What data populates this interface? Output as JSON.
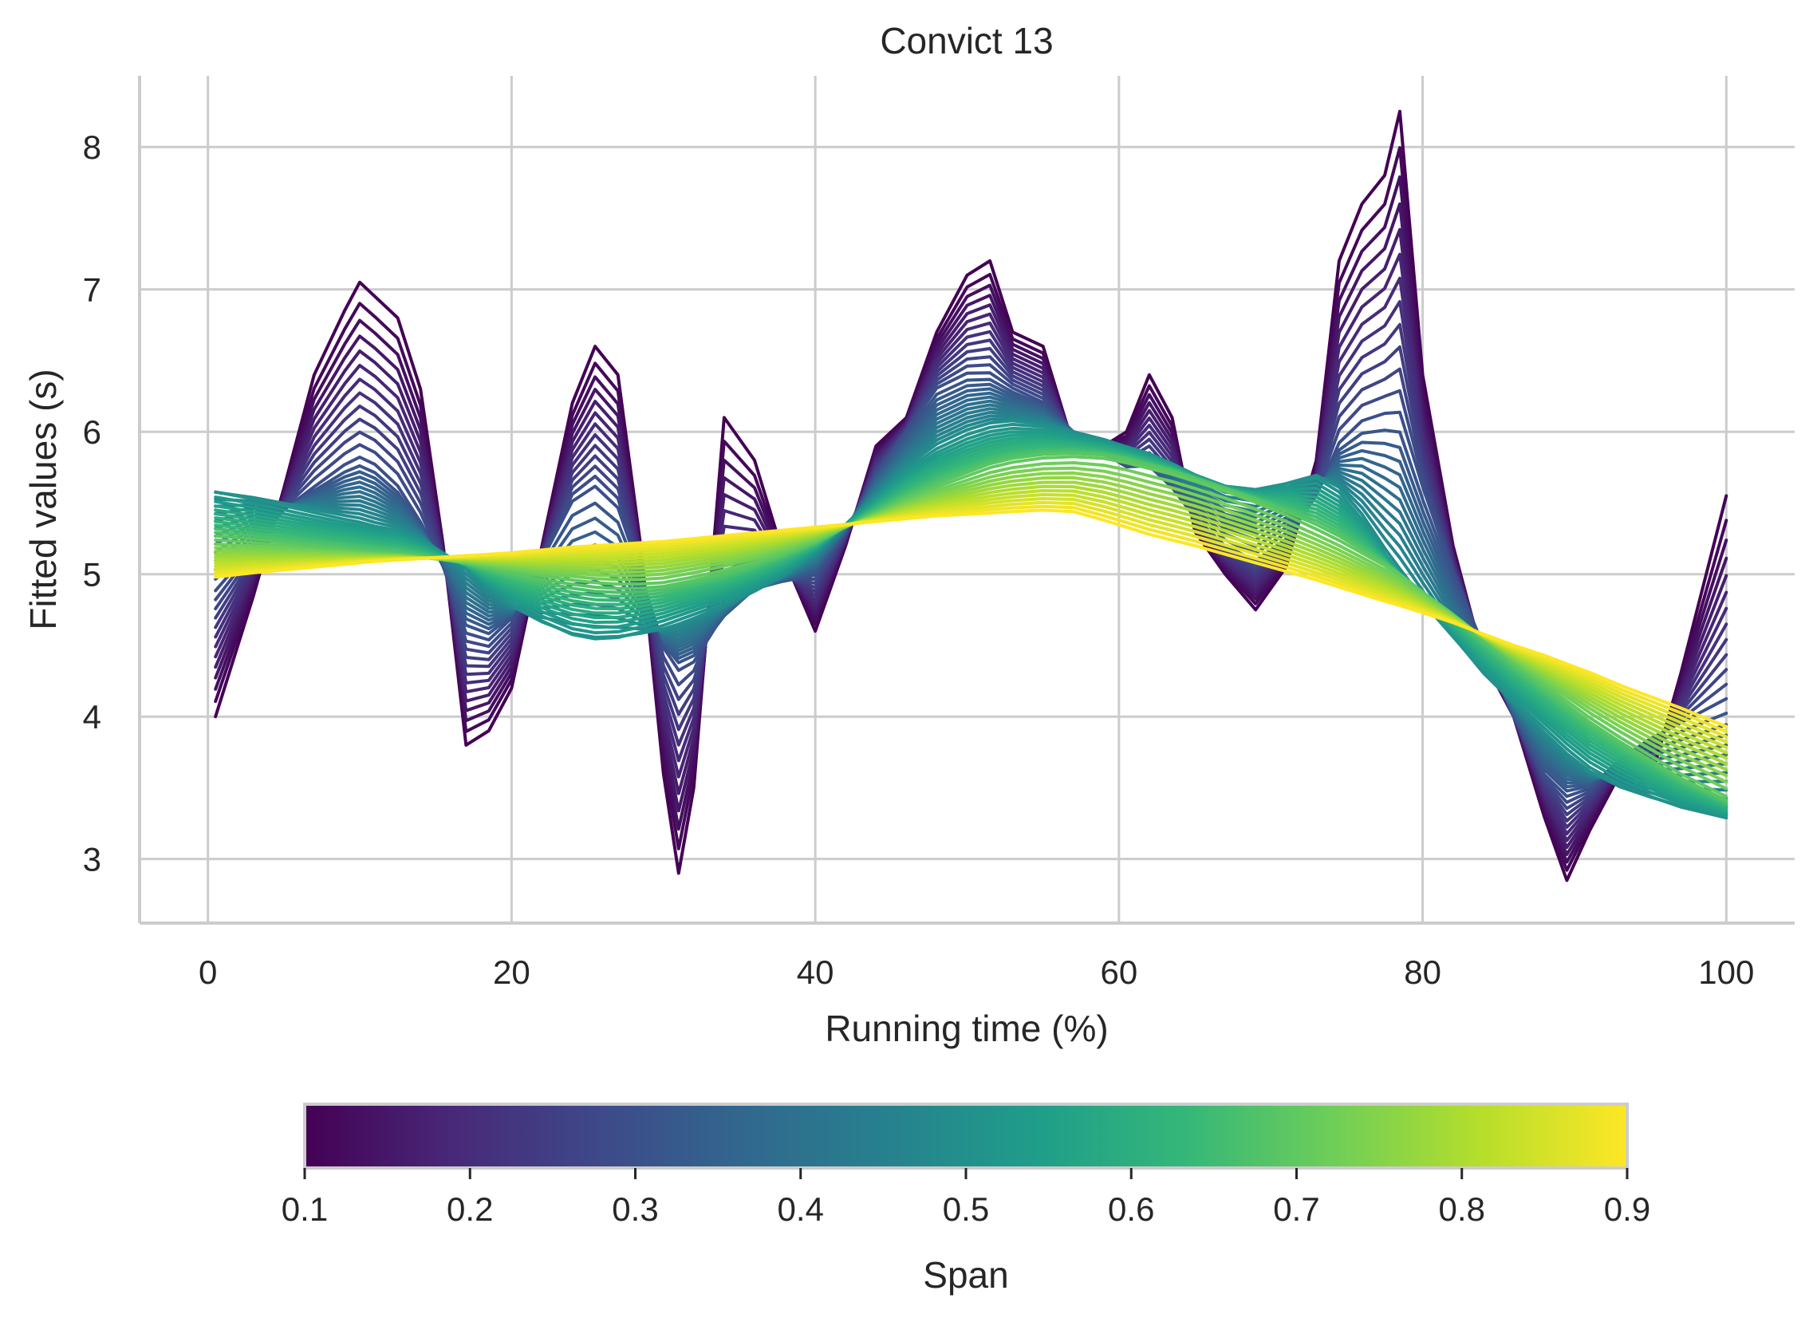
{
  "chart_data": {
    "type": "line",
    "title": "Convict 13",
    "xlabel": "Running time (%)",
    "ylabel": "Fitted values (s)",
    "xlim": [
      -4.5,
      104.5
    ],
    "ylim": [
      2.55,
      8.5
    ],
    "xticks": [
      "0",
      "20",
      "40",
      "60",
      "80",
      "100"
    ],
    "xtick_values": [
      0,
      20,
      40,
      60,
      80,
      100
    ],
    "yticks": [
      "3",
      "4",
      "5",
      "6",
      "7",
      "8"
    ],
    "ytick_values": [
      3,
      4,
      5,
      6,
      7,
      8
    ],
    "grid": true,
    "colormap": "viridis",
    "series_span_range": [
      0.1,
      0.9
    ],
    "series_count": 50,
    "x": [
      0.5,
      3,
      5,
      7,
      9,
      10,
      11,
      12.5,
      14,
      15.5,
      17,
      18.5,
      20,
      22,
      24,
      25.5,
      27,
      28.5,
      30,
      31,
      32,
      34,
      36,
      38,
      40,
      42,
      44,
      46,
      48,
      50,
      51.5,
      53,
      55,
      57,
      59,
      60.5,
      62,
      63.5,
      65,
      67,
      69,
      71,
      73,
      74.5,
      76,
      77.5,
      78.5,
      80,
      82,
      84,
      86,
      88,
      89.5,
      91,
      93,
      95,
      97,
      100
    ],
    "key_curves": [
      {
        "span": 0.1,
        "values": [
          4.0,
          4.85,
          5.6,
          6.4,
          6.85,
          7.05,
          6.95,
          6.8,
          6.3,
          5.2,
          3.8,
          3.9,
          4.2,
          5.2,
          6.2,
          6.6,
          6.4,
          5.2,
          3.6,
          2.9,
          3.5,
          6.1,
          5.8,
          5.1,
          4.6,
          5.2,
          5.9,
          6.1,
          6.7,
          7.1,
          7.2,
          6.7,
          6.6,
          5.9,
          5.9,
          6.0,
          6.4,
          6.1,
          5.3,
          5.0,
          4.75,
          5.05,
          5.8,
          7.2,
          7.6,
          7.8,
          8.25,
          6.4,
          5.2,
          4.4,
          4.0,
          3.3,
          2.85,
          3.2,
          3.6,
          3.55,
          4.3,
          5.55
        ]
      },
      {
        "span": 0.3,
        "values": [
          4.9,
          5.2,
          5.45,
          5.6,
          5.75,
          5.8,
          5.75,
          5.6,
          5.35,
          5.05,
          4.6,
          4.55,
          4.7,
          5.1,
          5.5,
          5.6,
          5.45,
          5.0,
          4.5,
          4.35,
          4.4,
          4.7,
          4.9,
          4.95,
          5.0,
          5.3,
          5.7,
          6.0,
          6.3,
          6.4,
          6.4,
          6.3,
          6.2,
          6.0,
          5.85,
          5.75,
          5.75,
          5.6,
          5.4,
          5.2,
          5.1,
          5.25,
          5.55,
          5.9,
          6.05,
          6.1,
          6.1,
          5.6,
          5.0,
          4.5,
          4.0,
          3.6,
          3.45,
          3.5,
          3.7,
          3.85,
          3.95,
          4.1
        ]
      },
      {
        "span": 0.5,
        "values": [
          5.6,
          5.55,
          5.5,
          5.45,
          5.4,
          5.38,
          5.35,
          5.32,
          5.25,
          5.15,
          5.05,
          4.9,
          4.78,
          4.65,
          4.55,
          4.52,
          4.53,
          4.57,
          4.62,
          4.66,
          4.7,
          4.78,
          4.88,
          5.0,
          5.15,
          5.35,
          5.55,
          5.75,
          5.9,
          6.0,
          6.05,
          6.07,
          6.05,
          6.0,
          5.95,
          5.9,
          5.85,
          5.78,
          5.7,
          5.62,
          5.6,
          5.65,
          5.7,
          5.6,
          5.4,
          5.15,
          5.0,
          4.8,
          4.55,
          4.3,
          4.1,
          3.9,
          3.75,
          3.62,
          3.5,
          3.42,
          3.35,
          3.28
        ]
      },
      {
        "span": 0.7,
        "values": [
          5.25,
          5.23,
          5.21,
          5.19,
          5.17,
          5.16,
          5.15,
          5.14,
          5.12,
          5.1,
          5.08,
          5.05,
          5.02,
          4.98,
          4.95,
          4.93,
          4.92,
          4.92,
          4.93,
          4.95,
          4.97,
          5.02,
          5.08,
          5.15,
          5.23,
          5.33,
          5.43,
          5.53,
          5.62,
          5.7,
          5.76,
          5.8,
          5.83,
          5.84,
          5.83,
          5.8,
          5.76,
          5.72,
          5.67,
          5.6,
          5.52,
          5.43,
          5.33,
          5.25,
          5.16,
          5.07,
          5.0,
          4.88,
          4.72,
          4.55,
          4.38,
          4.22,
          4.1,
          3.98,
          3.84,
          3.71,
          3.58,
          3.42
        ]
      },
      {
        "span": 0.9,
        "values": [
          4.98,
          5.01,
          5.03,
          5.05,
          5.07,
          5.08,
          5.09,
          5.1,
          5.11,
          5.12,
          5.13,
          5.14,
          5.15,
          5.17,
          5.19,
          5.2,
          5.21,
          5.22,
          5.23,
          5.24,
          5.25,
          5.27,
          5.29,
          5.31,
          5.33,
          5.35,
          5.37,
          5.39,
          5.41,
          5.42,
          5.43,
          5.44,
          5.45,
          5.44,
          5.38,
          5.33,
          5.28,
          5.24,
          5.2,
          5.14,
          5.08,
          5.02,
          4.96,
          4.91,
          4.86,
          4.81,
          4.78,
          4.73,
          4.66,
          4.58,
          4.5,
          4.43,
          4.37,
          4.31,
          4.22,
          4.14,
          4.06,
          3.93
        ]
      }
    ],
    "colorbar": {
      "label": "Span",
      "ticks": [
        "0.1",
        "0.2",
        "0.3",
        "0.4",
        "0.5",
        "0.6",
        "0.7",
        "0.8",
        "0.9"
      ],
      "tick_values": [
        0.1,
        0.2,
        0.3,
        0.4,
        0.5,
        0.6,
        0.7,
        0.8,
        0.9
      ],
      "range": [
        0.1,
        0.9
      ],
      "orientation": "horizontal",
      "placement": "bottom"
    },
    "colors": {
      "grid": "#cccccc",
      "spine": "#cccccc",
      "text": "#262626",
      "viridis_stops": [
        "#440154",
        "#482878",
        "#3e4989",
        "#31688e",
        "#26828e",
        "#1f9e89",
        "#35b779",
        "#6ece58",
        "#b5de2b",
        "#fde725"
      ]
    }
  }
}
